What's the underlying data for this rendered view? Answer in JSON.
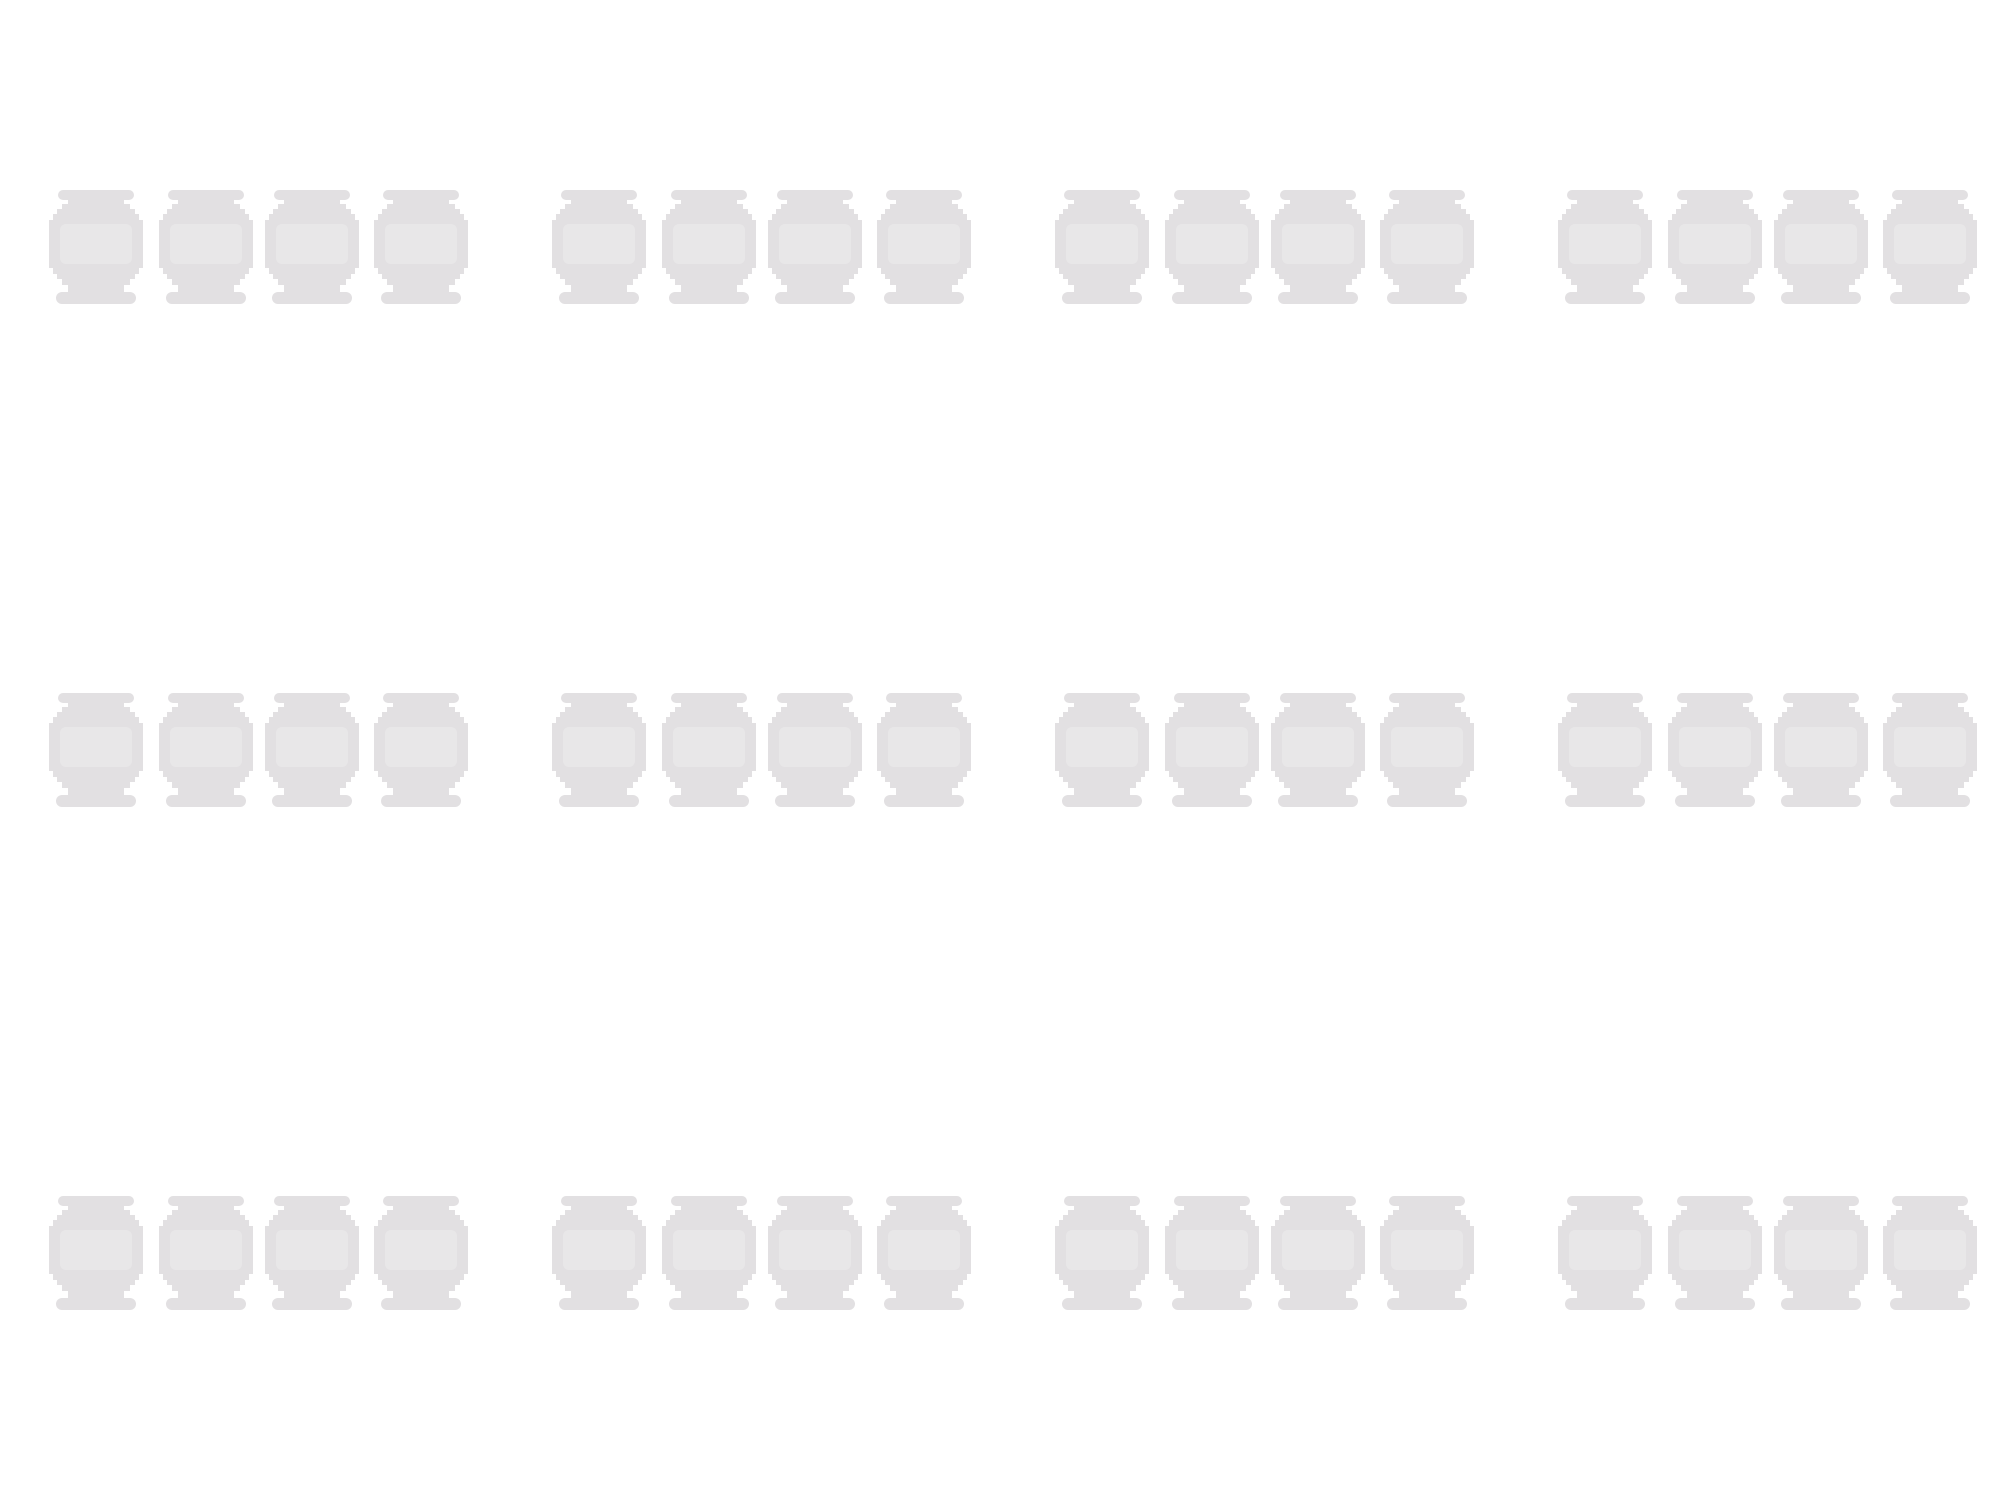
{
  "scene": {
    "subject": "damper-ball",
    "background_color": "#ffffff",
    "object_color": "#e2e0e2",
    "object_highlight_color": "#ecebec",
    "grid": {
      "rows": 3,
      "groups_per_row": 4,
      "items_per_group": 4
    },
    "total_items": 48
  }
}
